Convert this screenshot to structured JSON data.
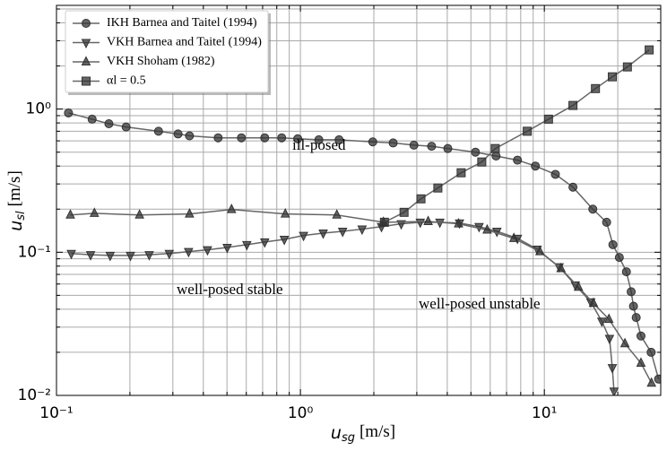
{
  "chart_data": {
    "type": "line",
    "xlabel": {
      "symbol": "u",
      "subscript": "sg",
      "unit": "[m/s]"
    },
    "ylabel": {
      "symbol": "u",
      "subscript": "sl",
      "unit": "[m/s]"
    },
    "xscale": "log",
    "yscale": "log",
    "xlim": [
      0.1,
      30
    ],
    "ylim": [
      0.01,
      5.3
    ],
    "xticks": [
      {
        "value": 0.1,
        "label": "10⁻¹"
      },
      {
        "value": 1,
        "label": "10⁰"
      },
      {
        "value": 10,
        "label": "10¹"
      }
    ],
    "yticks": [
      {
        "value": 0.01,
        "label": "10⁻²"
      },
      {
        "value": 0.1,
        "label": "10⁻¹"
      },
      {
        "value": 1,
        "label": "10⁰"
      }
    ],
    "xminor": [
      0.2,
      0.3,
      0.4,
      0.5,
      0.6,
      0.7,
      0.8,
      0.9,
      2,
      3,
      4,
      5,
      6,
      7,
      8,
      9,
      20
    ],
    "yminor": [
      0.02,
      0.03,
      0.04,
      0.05,
      0.06,
      0.07,
      0.08,
      0.09,
      0.2,
      0.3,
      0.4,
      0.5,
      0.6,
      0.7,
      0.8,
      0.9,
      2,
      3,
      4,
      5
    ],
    "grid": true,
    "legend": "upper left",
    "annotations": [
      "ill-posed",
      "well-posed stable",
      "well-posed unstable"
    ],
    "series": [
      {
        "name": "IKH Barnea and Taitel (1994)",
        "marker": "circle",
        "color": "#333333",
        "x": [
          0.112,
          0.14,
          0.164,
          0.193,
          0.262,
          0.315,
          0.351,
          0.46,
          0.573,
          0.714,
          0.838,
          0.975,
          1.19,
          1.44,
          1.98,
          2.4,
          2.92,
          3.45,
          4.02,
          5.22,
          6.34,
          7.76,
          9.19,
          11.1,
          13.1,
          15.8,
          18.0,
          19.1,
          20.3,
          21.7,
          22.7,
          23.2,
          23.8,
          24.9,
          27.4,
          29.4
        ],
        "values": [
          0.94,
          0.85,
          0.79,
          0.75,
          0.7,
          0.67,
          0.65,
          0.63,
          0.63,
          0.63,
          0.63,
          0.62,
          0.61,
          0.61,
          0.59,
          0.58,
          0.56,
          0.55,
          0.53,
          0.5,
          0.47,
          0.44,
          0.4,
          0.35,
          0.285,
          0.2,
          0.162,
          0.113,
          0.092,
          0.073,
          0.053,
          0.042,
          0.035,
          0.026,
          0.02,
          0.013
        ]
      },
      {
        "name": "VKH Barnea and Taitel (1994)",
        "marker": "tri-down",
        "color": "#333333",
        "x": [
          0.115,
          0.138,
          0.166,
          0.201,
          0.24,
          0.29,
          0.348,
          0.416,
          0.501,
          0.603,
          0.714,
          0.859,
          1.03,
          1.24,
          1.49,
          1.79,
          2.15,
          2.59,
          3.1,
          3.73,
          4.49,
          5.4,
          6.39,
          7.76,
          9.35,
          11.5,
          13.4,
          15.5,
          17.2,
          18.5,
          19.0,
          19.3
        ],
        "values": [
          0.098,
          0.096,
          0.095,
          0.095,
          0.096,
          0.098,
          0.101,
          0.104,
          0.108,
          0.113,
          0.118,
          0.123,
          0.131,
          0.136,
          0.14,
          0.145,
          0.151,
          0.158,
          0.162,
          0.162,
          0.16,
          0.151,
          0.14,
          0.125,
          0.105,
          0.079,
          0.059,
          0.045,
          0.033,
          0.025,
          0.0156,
          0.0107
        ]
      },
      {
        "name": "VKH Shoham (1982)",
        "marker": "tri-up",
        "color": "#333333",
        "x": [
          0.114,
          0.143,
          0.219,
          0.351,
          0.522,
          0.867,
          1.41,
          2.19,
          3.34,
          4.45,
          5.83,
          7.5,
          9.59,
          11.7,
          13.8,
          15.9,
          18.4,
          21.4,
          24.9,
          27.5
        ],
        "values": [
          0.182,
          0.187,
          0.182,
          0.185,
          0.199,
          0.185,
          0.182,
          0.162,
          0.164,
          0.158,
          0.143,
          0.125,
          0.101,
          0.077,
          0.057,
          0.044,
          0.034,
          0.023,
          0.0168,
          0.0122
        ]
      },
      {
        "name": "αl = 0.5",
        "marker": "square",
        "color": "#333333",
        "x": [
          2.21,
          2.66,
          3.12,
          3.66,
          4.56,
          5.54,
          6.29,
          8.51,
          10.4,
          13.1,
          16.2,
          19.0,
          21.9,
          26.9
        ],
        "values": [
          0.162,
          0.19,
          0.236,
          0.281,
          0.359,
          0.427,
          0.53,
          0.7,
          0.85,
          1.06,
          1.39,
          1.68,
          1.97,
          2.59
        ]
      }
    ]
  }
}
